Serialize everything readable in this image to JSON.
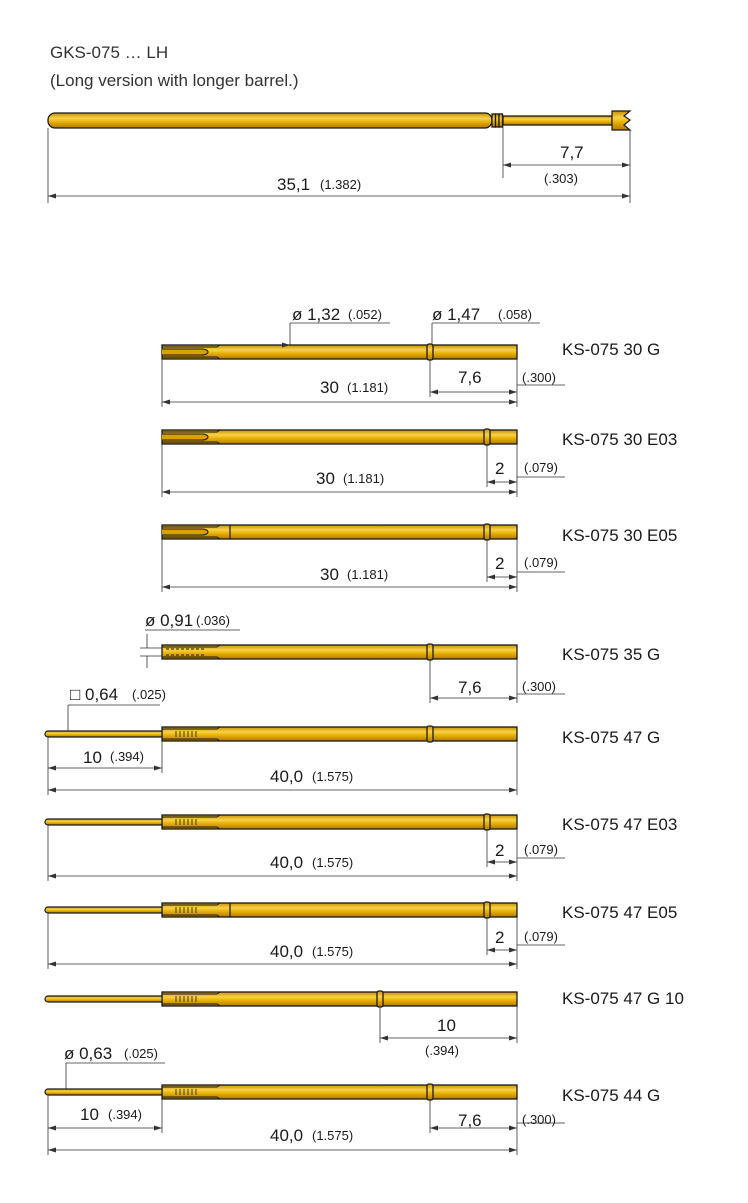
{
  "header": {
    "title": "GKS-075 … LH",
    "subtitle": "(Long version with longer barrel.)"
  },
  "top_probe": {
    "dim_plunger": "7,7",
    "dim_plunger_in": "(.303)",
    "dim_total": "35,1",
    "dim_total_in": "(1.382)"
  },
  "parts": [
    {
      "name": "KS-075 30 G",
      "dia1": "ø 1,32",
      "dia1_in": "(.052)",
      "dia2": "ø 1,47",
      "dia2_in": "(.058)",
      "dim_total": "30",
      "dim_total_in": "(1.181)",
      "dim_end": "7,6",
      "dim_end_in": "(.300)"
    },
    {
      "name": "KS-075 30 E03",
      "dim_total": "30",
      "dim_total_in": "(1.181)",
      "dim_end": "2",
      "dim_end_in": "(.079)"
    },
    {
      "name": "KS-075 30 E05",
      "dim_total": "30",
      "dim_total_in": "(1.181)",
      "dim_end": "2",
      "dim_end_in": "(.079)"
    },
    {
      "name": "KS-075 35 G",
      "dia": "ø 0,91",
      "dia_in": "(.036)",
      "dim_end": "7,6",
      "dim_end_in": "(.300)"
    },
    {
      "name": "KS-075 47 G",
      "square": "□ 0,64",
      "square_in": "(.025)",
      "dim_tip": "10",
      "dim_tip_in": "(.394)",
      "dim_total": "40,0",
      "dim_total_in": "(1.575)"
    },
    {
      "name": "KS-075 47 E03",
      "dim_total": "40,0",
      "dim_total_in": "(1.575)",
      "dim_end": "2",
      "dim_end_in": "(.079)"
    },
    {
      "name": "KS-075 47 E05",
      "dim_total": "40,0",
      "dim_total_in": "(1.575)",
      "dim_end": "2",
      "dim_end_in": "(.079)"
    },
    {
      "name": "KS-075 47 G 10",
      "dim_end": "10",
      "dim_end_in": "(.394)"
    },
    {
      "name": "KS-075 44 G",
      "dia": "ø 0,63",
      "dia_in": "(.025)",
      "dim_tip": "10",
      "dim_tip_in": "(.394)",
      "dim_total": "40,0",
      "dim_total_in": "(1.575)",
      "dim_end": "7,6",
      "dim_end_in": "(.300)"
    }
  ],
  "colors": {
    "gold": "#e8b000",
    "gold_light": "#f7d24a",
    "outline": "#1a1a1a",
    "dim_line": "#333333"
  }
}
